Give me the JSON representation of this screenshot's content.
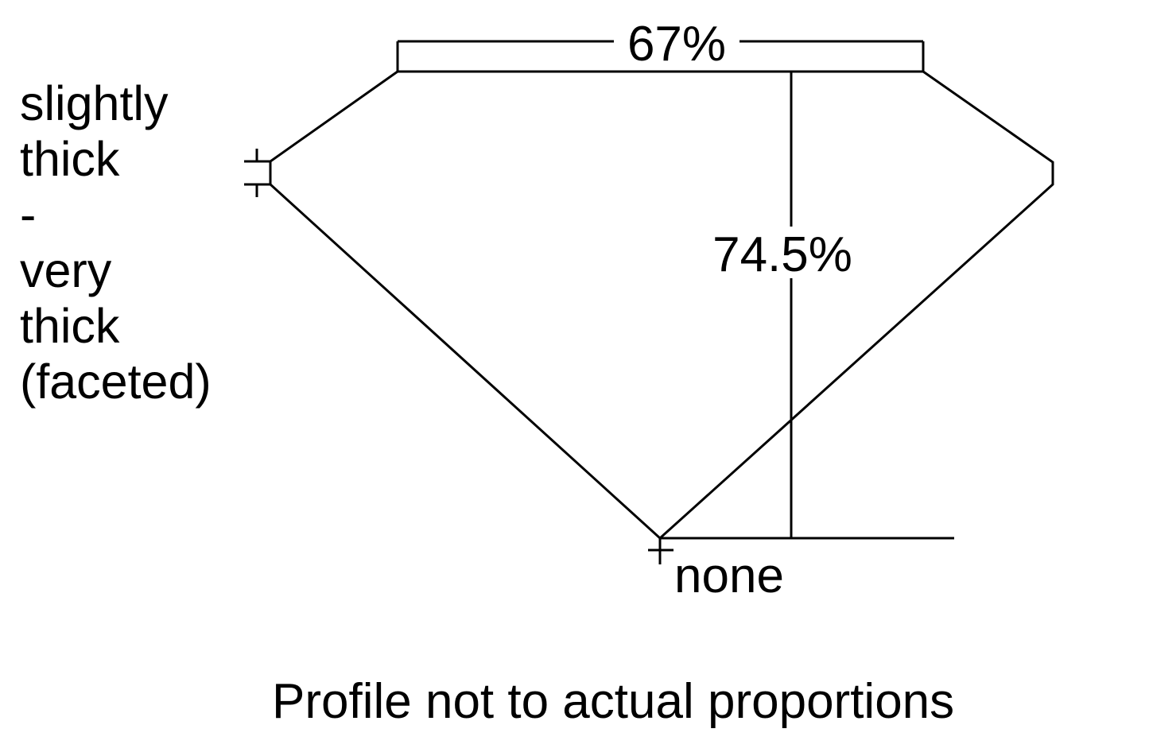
{
  "labels": {
    "table_percentage": "67%",
    "total_depth": "74.5%",
    "girdle": "slightly\nthick\n-\nvery\nthick\n(faceted)",
    "culet": "none",
    "footnote": "Profile not to actual proportions"
  },
  "colors": {
    "line": "#000000",
    "background": "#ffffff"
  }
}
